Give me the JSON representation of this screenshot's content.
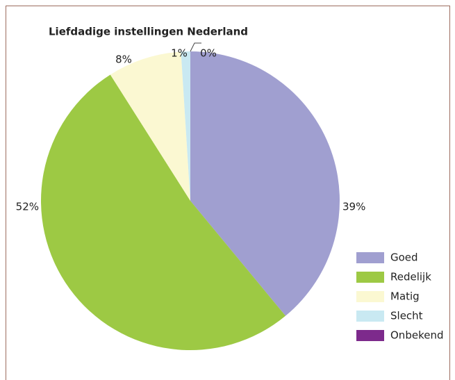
{
  "chart_data": {
    "type": "pie",
    "title": "Liefdadige instellingen Nederland",
    "categories": [
      "Goed",
      "Redelijk",
      "Matig",
      "Slecht",
      "Onbekend"
    ],
    "values": [
      39,
      52,
      8,
      1,
      0
    ],
    "value_labels": [
      "39%",
      "52%",
      "8%",
      "1%",
      "0%"
    ],
    "colors": [
      "#a09fd0",
      "#9dc944",
      "#fbf8d2",
      "#c9e9f2",
      "#7d2a8c"
    ],
    "legend": "right"
  }
}
